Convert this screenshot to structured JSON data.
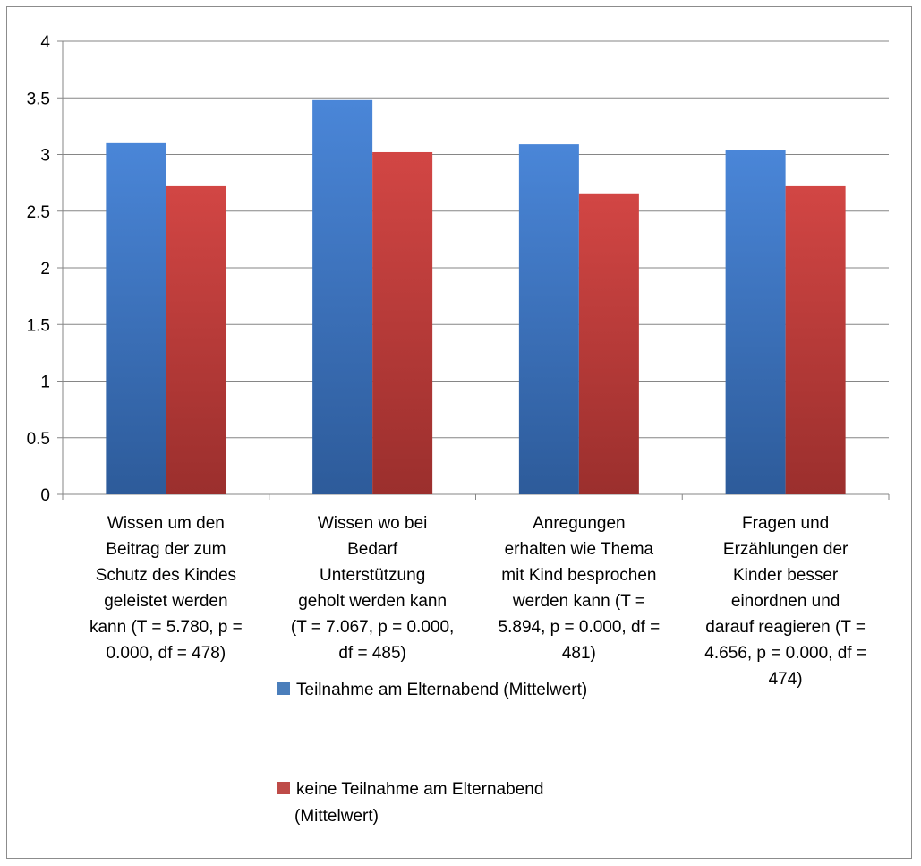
{
  "chart_data": {
    "type": "bar",
    "title": "",
    "xlabel": "",
    "ylabel": "",
    "ylim": [
      0,
      4
    ],
    "yticks": [
      "0",
      "0.5",
      "1",
      "1.5",
      "2",
      "2.5",
      "3",
      "3.5",
      "4"
    ],
    "grid": true,
    "legend_position": "bottom",
    "categories": [
      [
        "Wissen um den",
        "Beitrag der zum",
        "Schutz des Kindes",
        "geleistet werden",
        "kann (T = 5.780, p =",
        "0.000, df = 478)"
      ],
      [
        "Wissen wo bei",
        "Bedarf",
        "Unterstützung",
        "geholt werden kann",
        "(T = 7.067, p = 0.000,",
        "df = 485)"
      ],
      [
        "Anregungen",
        "erhalten wie Thema",
        "mit Kind besprochen",
        "werden kann (T =",
        "5.894, p = 0.000, df =",
        "481)"
      ],
      [
        "Fragen und",
        "Erzählungen der",
        "Kinder besser",
        "einordnen und",
        "darauf reagieren (T =",
        "4.656, p = 0.000, df =",
        "474)"
      ]
    ],
    "series": [
      {
        "name": "Teilnahme am Elternabend (Mittelwert)",
        "legend_lines": [
          "Teilnahme am Elternabend (Mittelwert)"
        ],
        "color": "#4a7ebb",
        "values": [
          3.1,
          3.48,
          3.09,
          3.04
        ]
      },
      {
        "name": "keine Teilnahme am Elternabend (Mittelwert)",
        "legend_lines": [
          "keine Teilnahme am Elternabend",
          "(Mittelwert)"
        ],
        "color": "#be4b48",
        "values": [
          2.72,
          3.02,
          2.65,
          2.72
        ]
      }
    ]
  }
}
